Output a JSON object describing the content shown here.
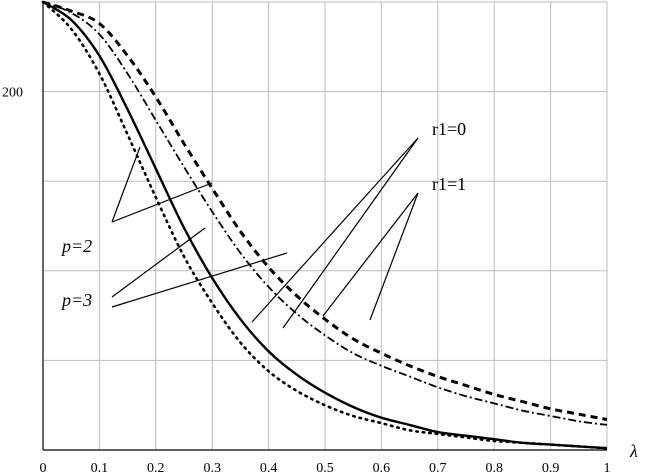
{
  "chart_data": {
    "type": "line",
    "title": "",
    "xlabel": "λ",
    "ylabel": "",
    "xlim": [
      0,
      1
    ],
    "ylim": [
      0,
      250
    ],
    "x_ticks": [
      0,
      0.1,
      0.2,
      0.3,
      0.4,
      0.5,
      0.6,
      0.7,
      0.8,
      0.9,
      1
    ],
    "x_tick_labels": [
      "0",
      "0.1",
      "0.2",
      "0.3",
      "0.4",
      "0.5",
      "0.6",
      "0.7",
      "0.8",
      "0.9",
      "1"
    ],
    "y_tick_labels": [
      {
        "value": 200,
        "label": "200"
      }
    ],
    "y_gridlines": [
      50,
      100,
      150,
      200,
      250
    ],
    "grid": true,
    "annotations": {
      "r1_0": "r1=0",
      "r1_1": "r1=1",
      "p2": "p=2",
      "p3": "p=3"
    },
    "series": [
      {
        "id": "p2_r1_1",
        "style": "dashed",
        "x": [
          0,
          0.05,
          0.1,
          0.15,
          0.2,
          0.25,
          0.3,
          0.35,
          0.4,
          0.45,
          0.5,
          0.55,
          0.6,
          0.65,
          0.7,
          0.75,
          0.8,
          0.85,
          0.9,
          0.95,
          1.0
        ],
        "y": [
          250,
          245,
          238,
          220,
          197,
          171,
          146,
          122,
          102,
          86,
          73,
          62,
          54,
          47,
          41,
          36,
          31,
          27,
          23,
          20,
          17
        ]
      },
      {
        "id": "p2_r1_0",
        "style": "dash-dot",
        "x": [
          0,
          0.05,
          0.1,
          0.15,
          0.2,
          0.25,
          0.3,
          0.35,
          0.4,
          0.45,
          0.5,
          0.55,
          0.6,
          0.65,
          0.7,
          0.75,
          0.8,
          0.85,
          0.9,
          0.95,
          1.0
        ],
        "y": [
          250,
          244,
          232,
          210,
          184,
          158,
          133,
          110,
          91,
          76,
          64,
          54,
          47,
          41,
          35,
          30,
          26,
          22,
          19,
          16,
          14
        ]
      },
      {
        "id": "p3_r1_0",
        "style": "solid",
        "x": [
          0,
          0.05,
          0.1,
          0.15,
          0.2,
          0.25,
          0.3,
          0.35,
          0.4,
          0.45,
          0.5,
          0.55,
          0.6,
          0.65,
          0.7,
          0.75,
          0.8,
          0.85,
          0.9,
          0.95,
          1.0
        ],
        "y": [
          250,
          240,
          220,
          190,
          157,
          124,
          96,
          73,
          55,
          42,
          32,
          24,
          18,
          14,
          10,
          8,
          6,
          4,
          3,
          2,
          1
        ]
      },
      {
        "id": "p3_r1_1",
        "style": "dotted",
        "x": [
          0,
          0.05,
          0.1,
          0.15,
          0.2,
          0.25,
          0.3,
          0.35,
          0.4,
          0.45,
          0.5,
          0.55,
          0.6,
          0.65,
          0.7,
          0.75,
          0.8,
          0.85,
          0.9,
          0.95,
          1.0
        ],
        "y": [
          250,
          235,
          210,
          176,
          141,
          108,
          82,
          60,
          44,
          33,
          25,
          19,
          15,
          11,
          9,
          7,
          5,
          4,
          3,
          2,
          1
        ]
      }
    ]
  }
}
